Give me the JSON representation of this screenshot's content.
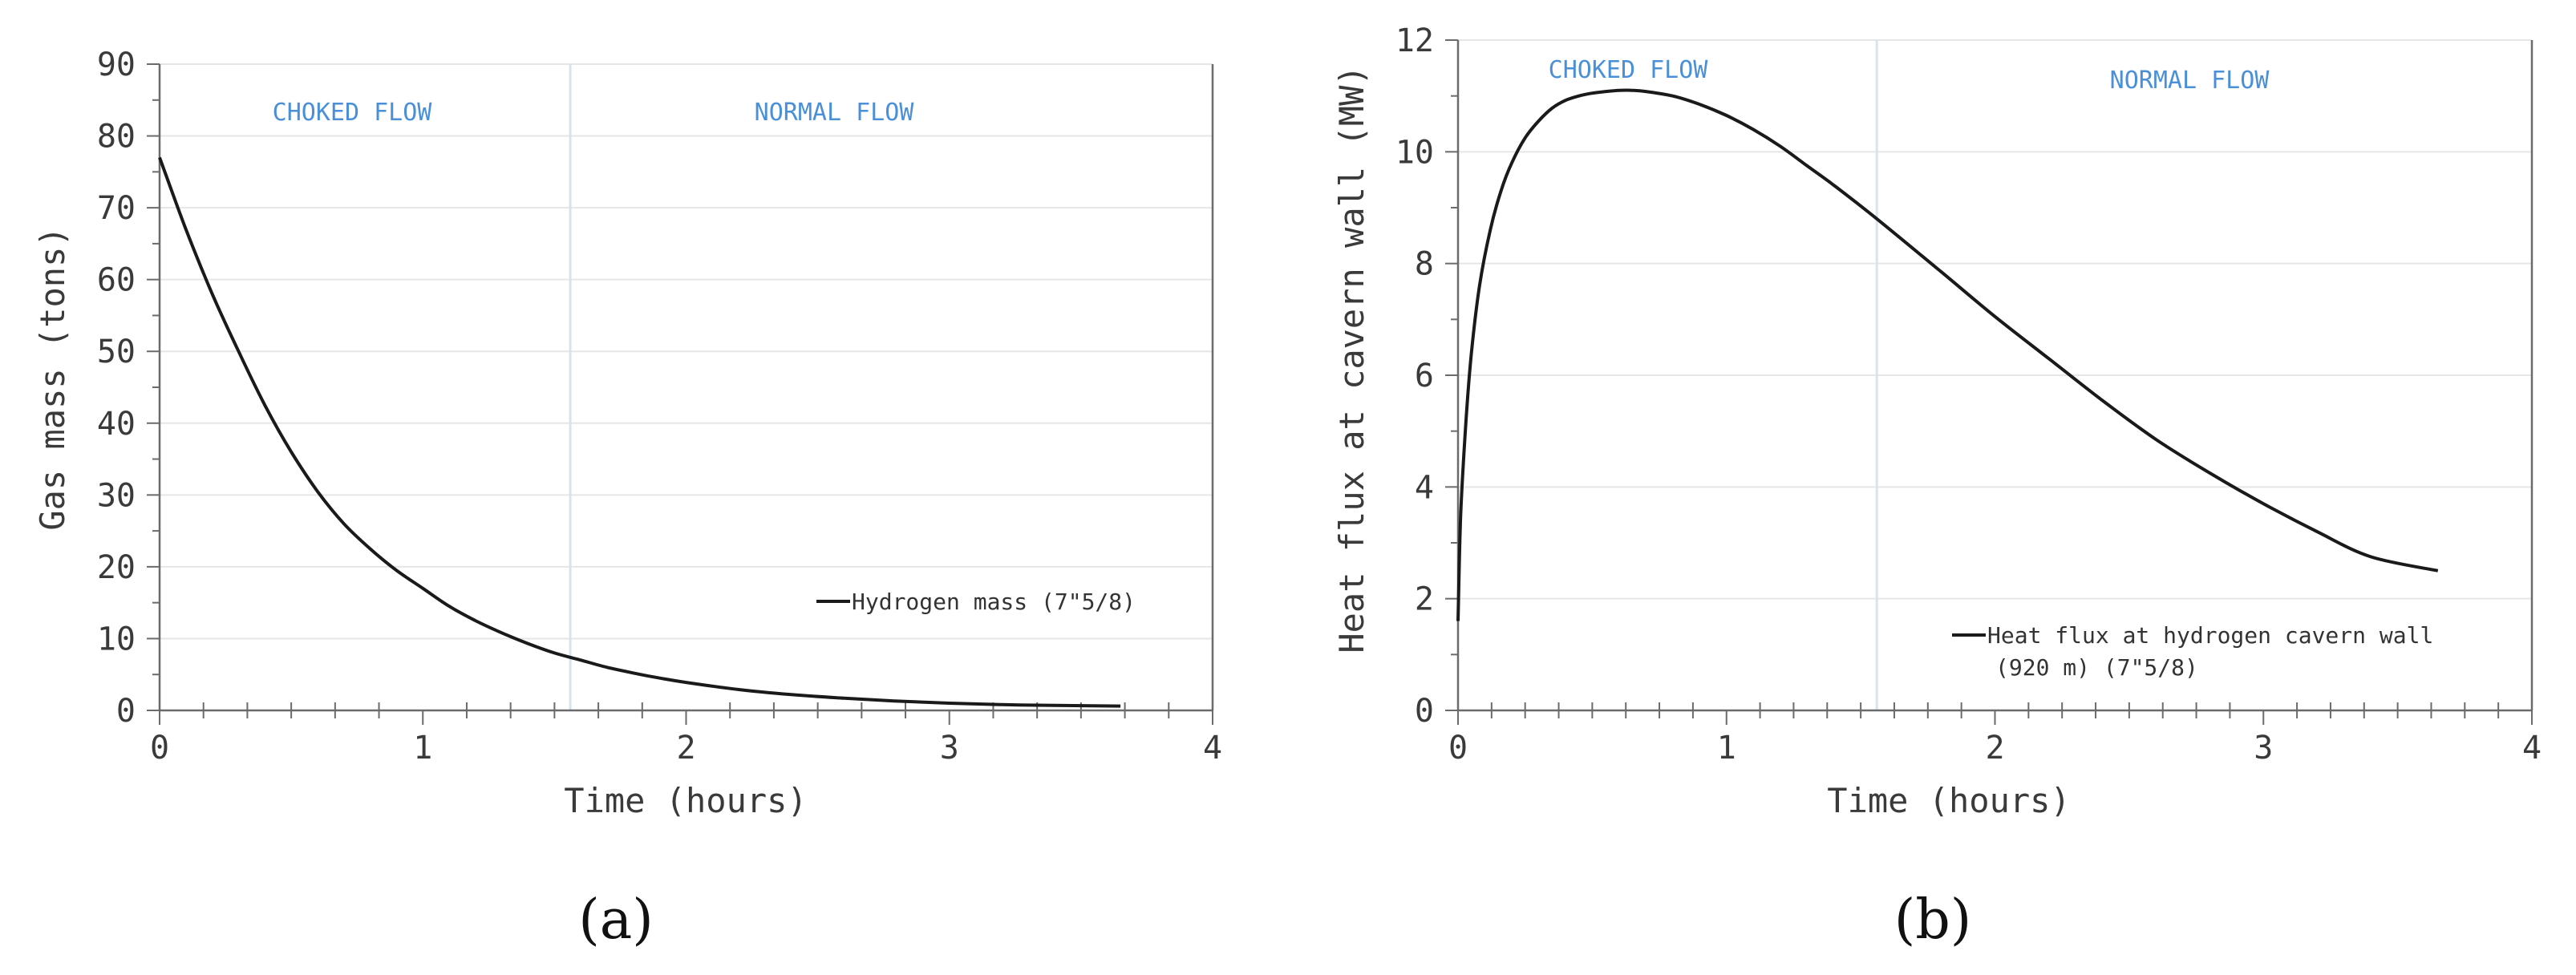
{
  "chart_data": [
    {
      "panel": "(a)",
      "type": "line",
      "xlabel": "Time (hours)",
      "ylabel": "Gas mass (tons)",
      "xlim": [
        0,
        4
      ],
      "ylim": [
        0,
        90
      ],
      "xticks": [
        0,
        1,
        2,
        3,
        4
      ],
      "yticks": [
        0,
        10,
        20,
        30,
        40,
        50,
        60,
        70,
        80,
        90
      ],
      "grid": true,
      "regions": [
        {
          "label": "CHOKED FLOW",
          "x_start": 0,
          "x_end": 1.56
        },
        {
          "label": "NORMAL FLOW",
          "x_start": 1.56,
          "x_end": 4
        }
      ],
      "boundary_x": 1.56,
      "legend_position": "lower-right",
      "series": [
        {
          "name": "Hydrogen mass (7\"5/8)",
          "x": [
            0,
            0.1,
            0.2,
            0.3,
            0.4,
            0.5,
            0.6,
            0.7,
            0.8,
            0.9,
            1.0,
            1.1,
            1.2,
            1.3,
            1.4,
            1.5,
            1.6,
            1.7,
            1.8,
            1.9,
            2.0,
            2.2,
            2.4,
            2.6,
            2.8,
            3.0,
            3.2,
            3.4,
            3.65
          ],
          "y": [
            77,
            67,
            58,
            50,
            42.5,
            36,
            30.5,
            26,
            22.5,
            19.5,
            17,
            14.5,
            12.5,
            10.8,
            9.3,
            8,
            7,
            6,
            5.2,
            4.5,
            3.9,
            2.9,
            2.2,
            1.7,
            1.3,
            1.0,
            0.8,
            0.7,
            0.6
          ]
        }
      ]
    },
    {
      "panel": "(b)",
      "type": "line",
      "xlabel": "Time (hours)",
      "ylabel": "Heat flux at cavern wall (MW)",
      "xlim": [
        0,
        4
      ],
      "ylim": [
        0,
        12
      ],
      "xticks": [
        0,
        1,
        2,
        3,
        4
      ],
      "yticks": [
        0,
        2,
        4,
        6,
        8,
        10,
        12
      ],
      "grid": true,
      "regions": [
        {
          "label": "CHOKED FLOW",
          "x_start": 0,
          "x_end": 1.56
        },
        {
          "label": "NORMAL FLOW",
          "x_start": 1.56,
          "x_end": 4
        }
      ],
      "boundary_x": 1.56,
      "legend_position": "lower-right",
      "series": [
        {
          "name": "Heat flux at hydrogen cavern wall (920 m) (7\"5/8)",
          "name_lines": [
            "Heat flux at hydrogen cavern wall",
            "(920 m) (7\"5/8)"
          ],
          "x": [
            0,
            0.01,
            0.03,
            0.05,
            0.08,
            0.12,
            0.16,
            0.2,
            0.25,
            0.3,
            0.35,
            0.4,
            0.45,
            0.5,
            0.55,
            0.6,
            0.65,
            0.7,
            0.8,
            0.9,
            1.0,
            1.1,
            1.2,
            1.3,
            1.4,
            1.56,
            1.8,
            2.0,
            2.2,
            2.4,
            2.6,
            2.8,
            3.0,
            3.2,
            3.4,
            3.65
          ],
          "y": [
            1.6,
            3.5,
            5.2,
            6.4,
            7.6,
            8.6,
            9.3,
            9.8,
            10.25,
            10.55,
            10.78,
            10.92,
            11.0,
            11.05,
            11.08,
            11.1,
            11.1,
            11.08,
            11.0,
            10.85,
            10.65,
            10.4,
            10.1,
            9.75,
            9.4,
            8.8,
            7.85,
            7.05,
            6.3,
            5.55,
            4.85,
            4.25,
            3.7,
            3.2,
            2.75,
            2.5
          ]
        }
      ]
    }
  ]
}
